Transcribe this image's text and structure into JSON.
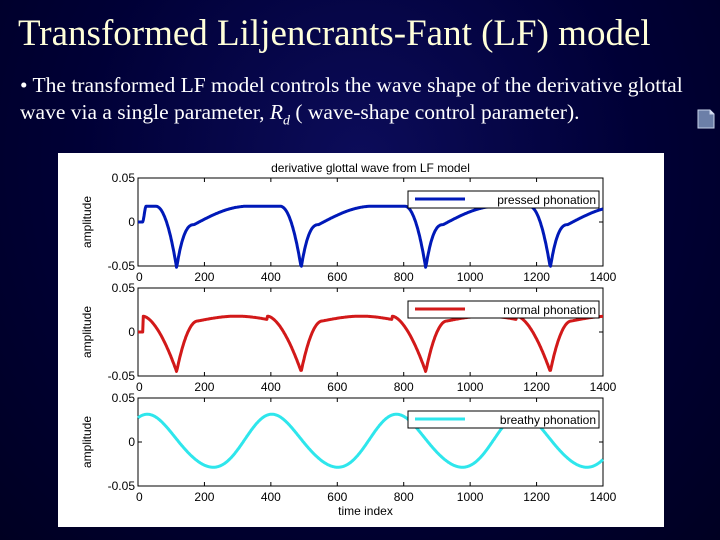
{
  "slide": {
    "title": "Transformed Liljencrants-Fant (LF) model",
    "bullet_pre": "• The transformed LF model controls the wave shape of the derivative glottal wave via a single parameter, ",
    "bullet_param": "R",
    "bullet_param_sub": "d",
    "bullet_post": " ( wave-shape control parameter)."
  },
  "colors": {
    "background": "#000033",
    "title": "#ffffd9",
    "pressed": "#0019b8",
    "normal": "#d21919",
    "breathy": "#2ee6ec"
  },
  "chart_data": [
    {
      "type": "line",
      "title": "derivative glottal wave from LF model",
      "ylabel": "amplitude",
      "xlabel": "",
      "xlim": [
        0,
        1400
      ],
      "ylim": [
        -0.05,
        0.05
      ],
      "xticks": [
        "0",
        "200",
        "400",
        "600",
        "800",
        "1000",
        "1200",
        "1400"
      ],
      "yticks": [
        "-0.05",
        "0",
        "0.05"
      ],
      "legend": "top-right",
      "series": [
        {
          "name": "pressed phonation",
          "color": "#0019b8",
          "kind": "pressed"
        }
      ]
    },
    {
      "type": "line",
      "title": "",
      "ylabel": "amplitude",
      "xlabel": "",
      "xlim": [
        0,
        1400
      ],
      "ylim": [
        -0.05,
        0.05
      ],
      "xticks": [
        "0",
        "200",
        "400",
        "600",
        "800",
        "1000",
        "1200",
        "1400"
      ],
      "yticks": [
        "-0.05",
        "0",
        "0.05"
      ],
      "legend": "top-right",
      "series": [
        {
          "name": "normal phonation",
          "color": "#d21919",
          "kind": "normal"
        }
      ]
    },
    {
      "type": "line",
      "title": "",
      "ylabel": "amplitude",
      "xlabel": "time index",
      "xlim": [
        0,
        1400
      ],
      "ylim": [
        -0.05,
        0.05
      ],
      "xticks": [
        "0",
        "200",
        "400",
        "600",
        "800",
        "1000",
        "1200",
        "1400"
      ],
      "yticks": [
        "-0.05",
        "0",
        "0.05"
      ],
      "legend": "top-right",
      "series": [
        {
          "name": "breathy phonation",
          "color": "#2ee6ec",
          "kind": "breathy"
        }
      ]
    }
  ]
}
